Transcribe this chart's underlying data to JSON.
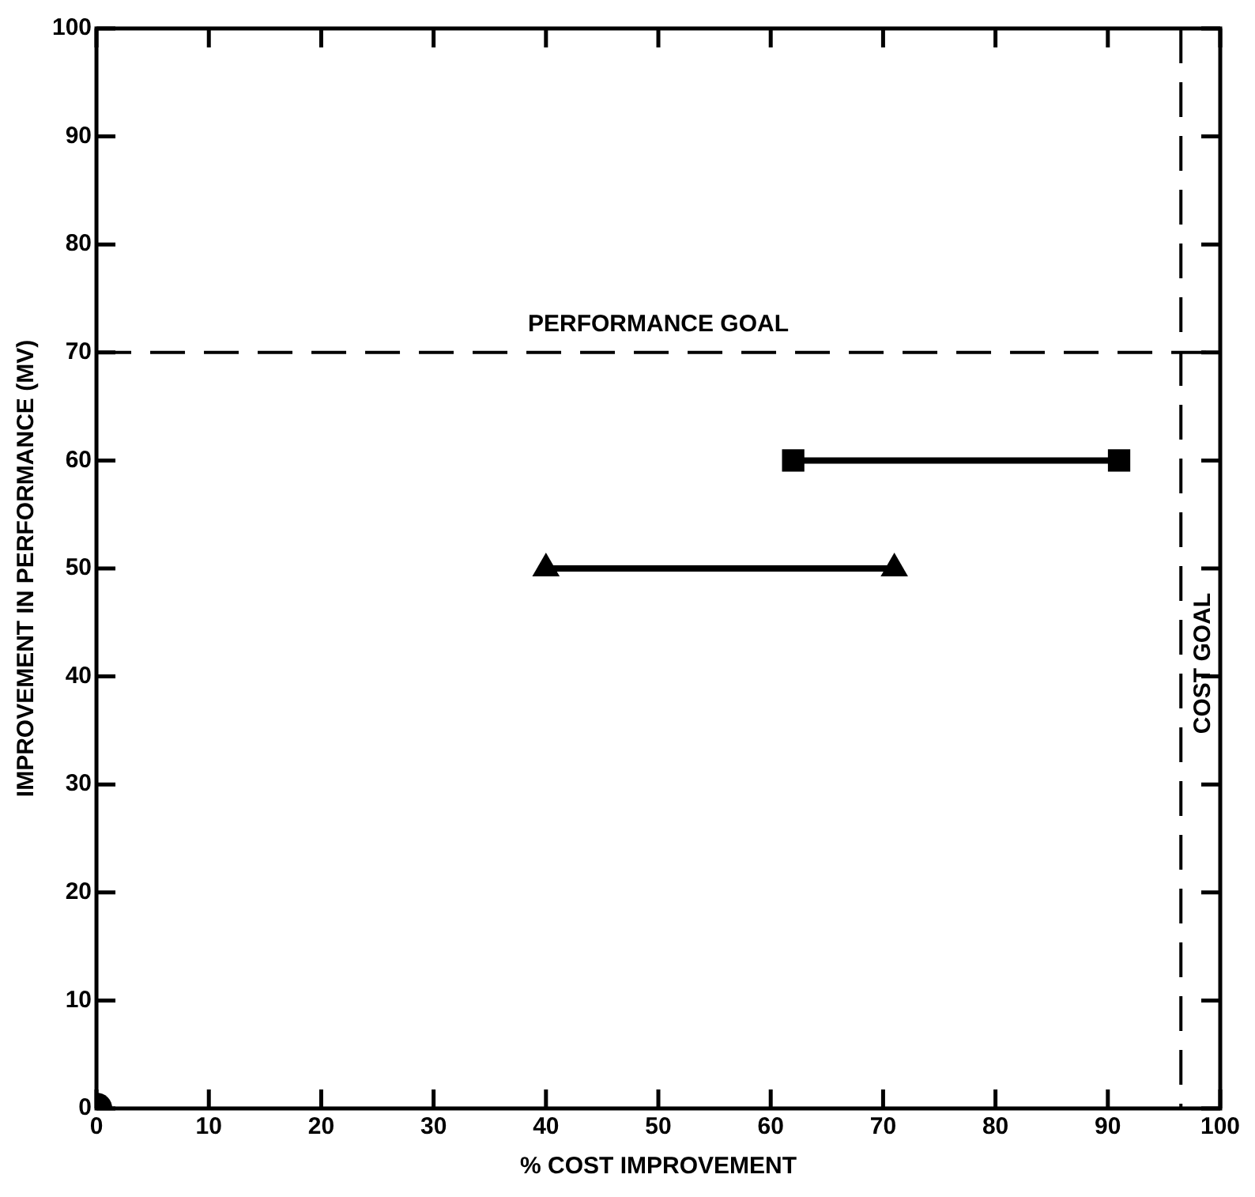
{
  "chart_data": {
    "type": "line",
    "xlabel": "% COST IMPROVEMENT",
    "ylabel": "IMPROVEMENT IN PERFORMANCE (MV)",
    "xlim": [
      0,
      100
    ],
    "xticks": [
      0,
      10,
      20,
      30,
      40,
      50,
      60,
      70,
      80,
      90,
      100
    ],
    "ylim": [
      0,
      100
    ],
    "yticks": [
      0,
      10,
      20,
      30,
      40,
      50,
      60,
      70,
      80,
      90,
      100
    ],
    "series": [
      {
        "color": "#000000",
        "marker": "square",
        "x": [
          62,
          91
        ],
        "values": [
          60,
          60
        ]
      },
      {
        "color": "#000000",
        "marker": "triangle",
        "x": [
          40,
          71
        ],
        "values": [
          50,
          50
        ]
      },
      {
        "type": "scatter",
        "color": "#000000",
        "marker": "circle",
        "x": [
          0
        ],
        "values": [
          0
        ]
      }
    ],
    "ref_lines": [
      {
        "axis": "y",
        "value": 70,
        "label": "PERFORMANCE GOAL",
        "line_style": "dashed",
        "color": "#000000"
      },
      {
        "axis": "x",
        "value": 96.5,
        "label": "COST GOAL",
        "line_style": "dashed",
        "color": "#000000"
      }
    ]
  }
}
